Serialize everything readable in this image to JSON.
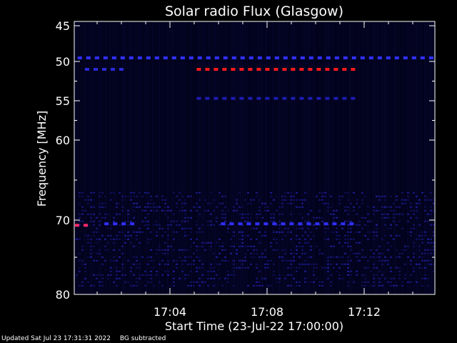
{
  "chart_data": {
    "type": "heatmap",
    "title": "Solar radio Flux (Glasgow)",
    "xlabel": "Start Time (23-Jul-22 17:00:00)",
    "ylabel": "Frequency [MHz]",
    "xlim_minutes": [
      0,
      14.9
    ],
    "ylim_mhz": [
      45,
      80
    ],
    "x_ticks": [
      {
        "minute": 4,
        "label": "17:04"
      },
      {
        "minute": 8,
        "label": "17:08"
      },
      {
        "minute": 12,
        "label": "17:12"
      }
    ],
    "y_ticks": [
      {
        "mhz": 45,
        "label": "45"
      },
      {
        "mhz": 50,
        "label": "50"
      },
      {
        "mhz": 55,
        "label": "55"
      },
      {
        "mhz": 60,
        "label": "60"
      },
      {
        "mhz": 70,
        "label": "70"
      },
      {
        "mhz": 80,
        "label": "80"
      }
    ],
    "features": [
      {
        "freq_mhz": 49.5,
        "t_start_min": 0.2,
        "t_end_min": 14.9,
        "color": "#3030ff"
      },
      {
        "freq_mhz": 51.0,
        "t_start_min": 5.1,
        "t_end_min": 11.8,
        "color": "#ff1a1a"
      },
      {
        "freq_mhz": 51.0,
        "t_start_min": 0.5,
        "t_end_min": 2.2,
        "color": "#2a2ad8"
      },
      {
        "freq_mhz": 54.7,
        "t_start_min": 5.1,
        "t_end_min": 11.8,
        "color": "#1c1cb0"
      },
      {
        "freq_mhz": 70.5,
        "t_start_min": 1.3,
        "t_end_min": 2.5,
        "color": "#3030ff"
      },
      {
        "freq_mhz": 70.5,
        "t_start_min": 6.1,
        "t_end_min": 11.5,
        "color": "#3030ff"
      },
      {
        "freq_mhz": 70.7,
        "t_start_min": 0.0,
        "t_end_min": 0.6,
        "color": "#ff2a6a"
      }
    ],
    "colors": {
      "background": "#000000",
      "plot_bg": "#02021a",
      "axes": "#ffffff"
    }
  },
  "footer": {
    "updated": "Updated Sat Jul 23 17:31:31 2022",
    "bg_note": "BG subtracted"
  }
}
